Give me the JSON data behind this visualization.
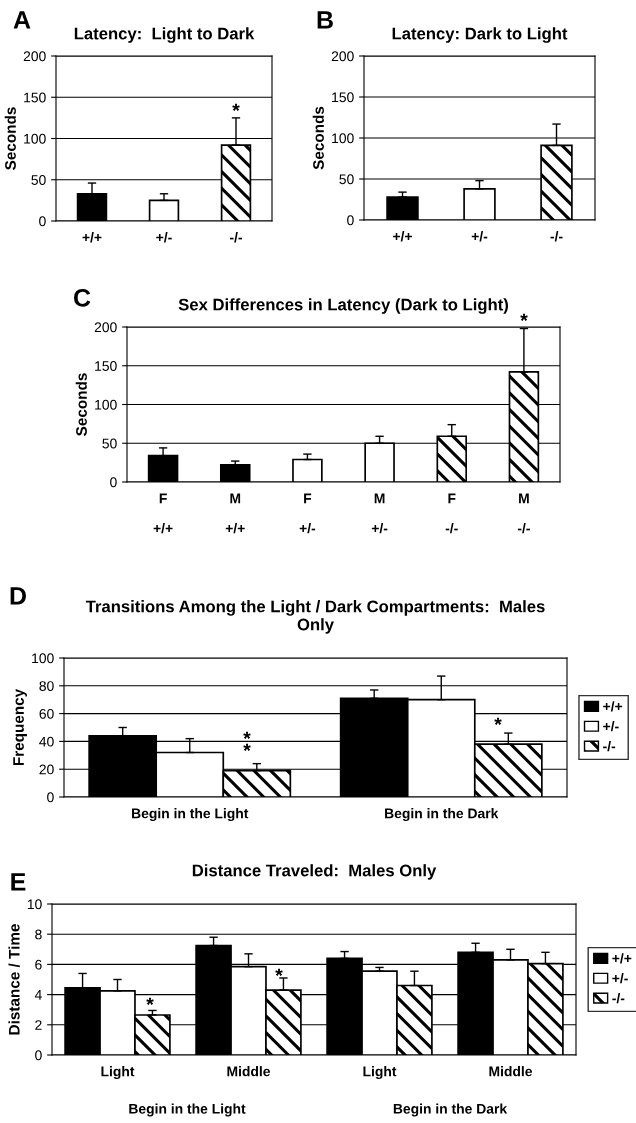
{
  "chart_data": [
    {
      "type": "bar",
      "title": "Latency:  Light to Dark",
      "ylabel": "Seconds",
      "categories": [
        "+/+",
        "+/-",
        "-/-"
      ],
      "values": [
        33,
        25,
        92
      ],
      "colors": [
        "#000000",
        "#ffffff",
        "#000000"
      ],
      "errors": [
        [
          33,
          46
        ],
        [
          25,
          33
        ],
        [
          92,
          125
        ]
      ],
      "ylim": [
        0,
        200
      ],
      "yticks": [
        0,
        50,
        100,
        150,
        200
      ],
      "grid": "y",
      "annotations": [
        "A",
        "*"
      ]
    },
    {
      "type": "bar",
      "title": "Latency: Dark to Light",
      "ylabel": "Seconds",
      "categories": [
        "+/+",
        "+/-",
        "-/-"
      ],
      "values": [
        28,
        38,
        91
      ],
      "colors": [
        "#000000",
        "#ffffff",
        "#000000"
      ],
      "errors": [
        [
          28,
          34
        ],
        [
          38,
          48
        ],
        [
          91,
          117
        ]
      ],
      "ylim": [
        0,
        200
      ],
      "yticks": [
        0,
        50,
        100,
        150,
        200
      ],
      "grid": "y",
      "annotations": [
        "B"
      ]
    },
    {
      "type": "bar",
      "title": "Sex Differences in Latency (Dark to Light)",
      "ylabel": "Seconds",
      "categories": [
        "F\n\n+/+",
        "M\n\n+/+",
        "F\n\n+/-",
        "M\n\n+/-",
        "F\n\n-/-",
        "M\n\n-/-"
      ],
      "values": [
        34,
        22,
        29,
        50,
        59,
        142
      ],
      "colors": [
        "#000000",
        "#000000",
        "#ffffff",
        "#ffffff",
        "#000000",
        "#000000"
      ],
      "errors": [
        [
          34,
          44
        ],
        [
          22,
          27
        ],
        [
          29,
          36
        ],
        [
          50,
          59
        ],
        [
          59,
          74
        ],
        [
          142,
          198
        ]
      ],
      "ylim": [
        0,
        200
      ],
      "yticks": [
        0,
        50,
        100,
        150,
        200
      ],
      "grid": "y",
      "annotations": [
        "C",
        "*"
      ]
    },
    {
      "type": "bar",
      "title": "Transitions Among the Light / Dark Compartments:  Males\nOnly",
      "ylabel": "Frequency",
      "categories": [
        "Begin in the Light",
        "Begin in the Dark"
      ],
      "series": [
        {
          "name": "+/+",
          "color": "#000000",
          "values": [
            44,
            71
          ],
          "errors": [
            [
              44,
              50
            ],
            [
              71,
              77
            ]
          ]
        },
        {
          "name": "+/-",
          "color": "#ffffff",
          "values": [
            32,
            70
          ],
          "errors": [
            [
              32,
              42
            ],
            [
              70,
              87
            ]
          ]
        },
        {
          "name": "-/-",
          "color": "#000000",
          "values": [
            19,
            38
          ],
          "errors": [
            [
              19,
              24
            ],
            [
              38,
              46
            ]
          ]
        }
      ],
      "ylim": [
        0,
        100
      ],
      "yticks": [
        0,
        20,
        40,
        60,
        80,
        100
      ],
      "grid": "y",
      "legend": "right",
      "annotations": [
        "D",
        "*",
        "*",
        "*"
      ]
    },
    {
      "type": "bar",
      "title": "Distance Traveled:  Males Only",
      "ylabel": "Distance / Time",
      "categories": [
        "Light",
        "Middle",
        "Light",
        "Middle"
      ],
      "series": [
        {
          "name": "+/+",
          "color": "#000000",
          "values": [
            4.45,
            7.25,
            6.4,
            6.8
          ],
          "errors": [
            [
              4.45,
              5.4
            ],
            [
              7.25,
              7.8
            ],
            [
              6.4,
              6.85
            ],
            [
              6.8,
              7.4
            ]
          ]
        },
        {
          "name": "+/-",
          "color": "#ffffff",
          "values": [
            4.25,
            5.85,
            5.55,
            6.3
          ],
          "errors": [
            [
              4.25,
              5.0
            ],
            [
              5.85,
              6.7
            ],
            [
              5.55,
              5.8
            ],
            [
              6.3,
              7.0
            ]
          ]
        },
        {
          "name": "-/-",
          "color": "#000000",
          "values": [
            2.65,
            4.3,
            4.6,
            6.05
          ],
          "errors": [
            [
              2.65,
              2.95
            ],
            [
              4.3,
              5.1
            ],
            [
              4.6,
              5.55
            ],
            [
              6.05,
              6.8
            ]
          ]
        }
      ],
      "ylim": [
        0,
        10
      ],
      "yticks": [
        0,
        2,
        4,
        6,
        8,
        10
      ],
      "grid": "y",
      "legend": "right",
      "annotations": [
        "E",
        "Begin in the Light",
        "Begin in the Dark",
        "*",
        "*"
      ]
    }
  ]
}
